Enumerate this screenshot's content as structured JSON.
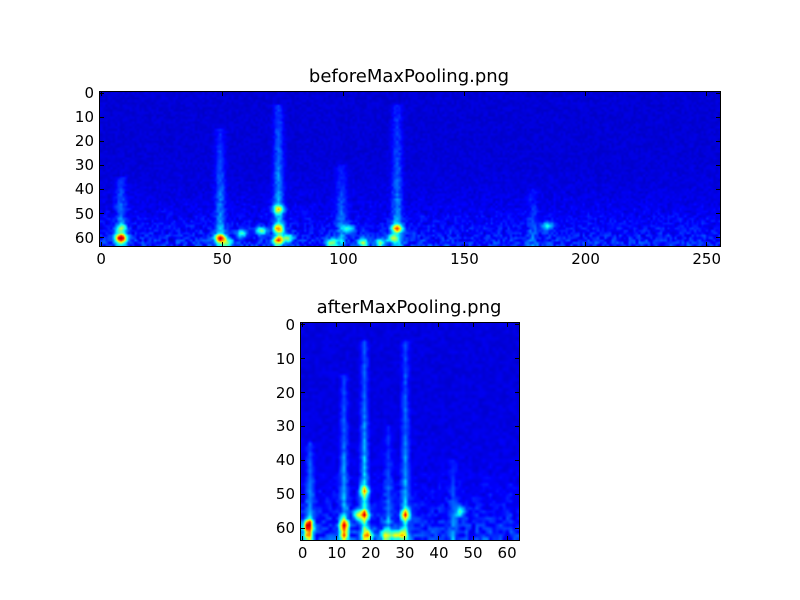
{
  "chart_data": [
    {
      "type": "heatmap",
      "title": "beforeMaxPooling.png",
      "colormap": "jet",
      "shape": [
        64,
        256
      ],
      "xlim": [
        -0.5,
        255.5
      ],
      "ylim": [
        63.5,
        -0.5
      ],
      "xticks": [
        0,
        50,
        100,
        150,
        200,
        250
      ],
      "yticks": [
        0,
        10,
        20,
        30,
        40,
        50,
        60
      ],
      "grid": false,
      "background_value": 0.02,
      "streaks": [
        {
          "x": 8,
          "top_y": 35,
          "strength": 0.25
        },
        {
          "x": 49,
          "top_y": 15,
          "strength": 0.25
        },
        {
          "x": 73,
          "top_y": 5,
          "strength": 0.3
        },
        {
          "x": 99,
          "top_y": 30,
          "strength": 0.2
        },
        {
          "x": 122,
          "top_y": 5,
          "strength": 0.25
        },
        {
          "x": 178,
          "top_y": 40,
          "strength": 0.12
        }
      ],
      "hotspots": [
        {
          "x": 8,
          "y": 60,
          "value": 0.92
        },
        {
          "x": 8,
          "y": 56,
          "value": 0.35
        },
        {
          "x": 49,
          "y": 60,
          "value": 0.72
        },
        {
          "x": 52,
          "y": 62,
          "value": 0.4
        },
        {
          "x": 58,
          "y": 58,
          "value": 0.3
        },
        {
          "x": 66,
          "y": 57,
          "value": 0.4
        },
        {
          "x": 73,
          "y": 56,
          "value": 0.55
        },
        {
          "x": 73,
          "y": 48,
          "value": 0.45
        },
        {
          "x": 73,
          "y": 61,
          "value": 0.5
        },
        {
          "x": 77,
          "y": 60,
          "value": 0.4
        },
        {
          "x": 95,
          "y": 62,
          "value": 0.45
        },
        {
          "x": 102,
          "y": 56,
          "value": 0.3
        },
        {
          "x": 108,
          "y": 62,
          "value": 0.45
        },
        {
          "x": 115,
          "y": 62,
          "value": 0.4
        },
        {
          "x": 122,
          "y": 56,
          "value": 0.62
        },
        {
          "x": 120,
          "y": 60,
          "value": 0.4
        },
        {
          "x": 184,
          "y": 55,
          "value": 0.3
        }
      ]
    },
    {
      "type": "heatmap",
      "title": "afterMaxPooling.png",
      "colormap": "jet",
      "shape": [
        64,
        64
      ],
      "xlim": [
        -0.5,
        63.5
      ],
      "ylim": [
        63.5,
        -0.5
      ],
      "xticks": [
        0,
        10,
        20,
        30,
        40,
        50,
        60
      ],
      "yticks": [
        0,
        10,
        20,
        30,
        40,
        50,
        60
      ],
      "grid": false,
      "background_value": 0.03,
      "streaks": [
        {
          "x": 2,
          "top_y": 35,
          "strength": 0.3
        },
        {
          "x": 12,
          "top_y": 15,
          "strength": 0.3
        },
        {
          "x": 18,
          "top_y": 5,
          "strength": 0.35
        },
        {
          "x": 25,
          "top_y": 30,
          "strength": 0.2
        },
        {
          "x": 30,
          "top_y": 5,
          "strength": 0.3
        },
        {
          "x": 44,
          "top_y": 40,
          "strength": 0.15
        }
      ],
      "hotspots": [
        {
          "x": 1.5,
          "y": 59,
          "value": 0.95
        },
        {
          "x": 1.5,
          "y": 62,
          "value": 0.55
        },
        {
          "x": 12,
          "y": 59,
          "value": 0.75
        },
        {
          "x": 12,
          "y": 62,
          "value": 0.45
        },
        {
          "x": 16,
          "y": 56,
          "value": 0.45
        },
        {
          "x": 18,
          "y": 56,
          "value": 0.6
        },
        {
          "x": 18,
          "y": 49,
          "value": 0.5
        },
        {
          "x": 19,
          "y": 62,
          "value": 0.6
        },
        {
          "x": 24,
          "y": 62,
          "value": 0.5
        },
        {
          "x": 27,
          "y": 62,
          "value": 0.5
        },
        {
          "x": 29,
          "y": 62,
          "value": 0.45
        },
        {
          "x": 30,
          "y": 56,
          "value": 0.65
        },
        {
          "x": 46,
          "y": 55,
          "value": 0.35
        }
      ]
    }
  ]
}
